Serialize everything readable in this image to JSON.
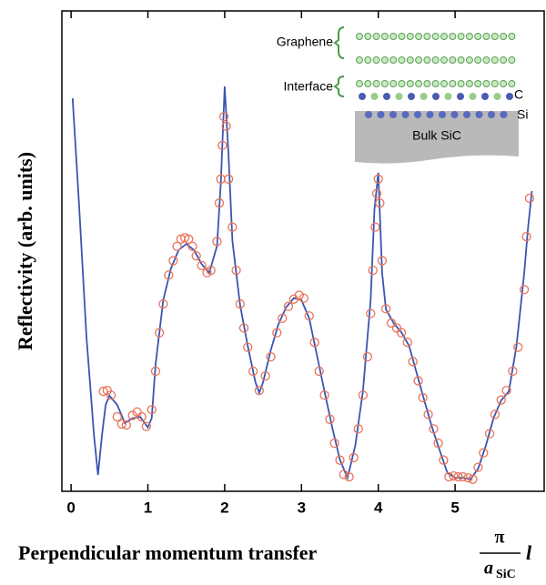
{
  "chart_data": {
    "type": "line",
    "y_label": "Reflectivity (arb. units)",
    "x_label": "Perpendicular momentum transfer",
    "x_label_formula": {
      "numerator": "π",
      "denominator": "a",
      "subscript": "SiC",
      "variable": "l"
    },
    "xlim": [
      -0.12,
      6.16
    ],
    "ylim": [
      0,
      100
    ],
    "xticks": [
      0,
      1,
      2,
      3,
      4,
      5
    ],
    "series": [
      {
        "mode": "line",
        "color": "#3a55b0",
        "x": [
          0.02,
          0.1,
          0.2,
          0.3,
          0.35,
          0.4,
          0.45,
          0.5,
          0.6,
          0.7,
          0.8,
          0.9,
          1.0,
          1.05,
          1.1,
          1.2,
          1.3,
          1.4,
          1.5,
          1.6,
          1.7,
          1.8,
          1.9,
          1.95,
          2.0,
          2.05,
          2.1,
          2.2,
          2.3,
          2.4,
          2.45,
          2.5,
          2.6,
          2.7,
          2.8,
          2.9,
          3.0,
          3.1,
          3.2,
          3.3,
          3.4,
          3.5,
          3.6,
          3.7,
          3.8,
          3.9,
          3.95,
          4.0,
          4.05,
          4.1,
          4.2,
          4.3,
          4.4,
          4.5,
          4.6,
          4.7,
          4.8,
          4.9,
          5.0,
          5.1,
          5.2,
          5.3,
          5.4,
          5.5,
          5.6,
          5.7,
          5.8,
          5.9,
          5.95,
          6.0
        ],
        "values": [
          81.8,
          60.6,
          32.2,
          11.4,
          3.4,
          11.4,
          18,
          19.9,
          18,
          14.2,
          15.2,
          15.5,
          13.3,
          15.2,
          26.5,
          39.8,
          46.4,
          50.2,
          51.5,
          50.2,
          47.3,
          45.5,
          51.1,
          64.4,
          84.3,
          70.1,
          52.1,
          38.8,
          30.3,
          22.7,
          20.5,
          22.7,
          29.4,
          34.8,
          38.3,
          40.2,
          39.8,
          36,
          28.4,
          20.8,
          13.3,
          6.6,
          2.8,
          9.5,
          20.8,
          39.8,
          58.7,
          66.3,
          45.5,
          37.9,
          35,
          33.1,
          30.3,
          24.6,
          18.9,
          13.3,
          8.5,
          3.8,
          2.8,
          2.8,
          2.5,
          4.7,
          9.5,
          15.2,
          18.9,
          20.8,
          30.3,
          45.5,
          54.9,
          62.5
        ]
      },
      {
        "mode": "markers",
        "color": "#e8735a",
        "x": [
          0.42,
          0.47,
          0.52,
          0.6,
          0.66,
          0.72,
          0.8,
          0.86,
          0.92,
          0.98,
          1.05,
          1.1,
          1.15,
          1.2,
          1.27,
          1.33,
          1.38,
          1.43,
          1.48,
          1.53,
          1.58,
          1.63,
          1.7,
          1.77,
          1.82,
          1.9,
          1.93,
          1.95,
          1.97,
          1.99,
          2.02,
          2.05,
          2.1,
          2.15,
          2.2,
          2.25,
          2.3,
          2.37,
          2.45,
          2.53,
          2.6,
          2.68,
          2.75,
          2.83,
          2.9,
          2.97,
          3.03,
          3.1,
          3.17,
          3.23,
          3.3,
          3.37,
          3.43,
          3.5,
          3.55,
          3.62,
          3.68,
          3.74,
          3.8,
          3.86,
          3.9,
          3.93,
          3.96,
          3.98,
          4.0,
          4.02,
          4.05,
          4.1,
          4.17,
          4.24,
          4.3,
          4.38,
          4.45,
          4.52,
          4.58,
          4.65,
          4.72,
          4.78,
          4.85,
          4.92,
          4.98,
          5.04,
          5.1,
          5.17,
          5.23,
          5.3,
          5.37,
          5.45,
          5.52,
          5.6,
          5.67,
          5.75,
          5.82,
          5.9,
          5.93,
          5.97
        ],
        "values": [
          20.8,
          21,
          20,
          15.5,
          14,
          13.8,
          15.8,
          16.5,
          15.5,
          13.5,
          17,
          25,
          33,
          39,
          45,
          48,
          51,
          52.5,
          52.8,
          52.5,
          51,
          49,
          47,
          45.5,
          46,
          52,
          60,
          65,
          72,
          78,
          76,
          65,
          55,
          46,
          39,
          34,
          30,
          25,
          21,
          24,
          28,
          33,
          36,
          38.5,
          40,
          40.8,
          40.2,
          36.5,
          31,
          25,
          20,
          15,
          10,
          6.5,
          3.5,
          3,
          7,
          13,
          20,
          28,
          37,
          46,
          55,
          62,
          65,
          60,
          48,
          38,
          35,
          34,
          33,
          31,
          27,
          23,
          19.5,
          16,
          13,
          10,
          6.5,
          3,
          3.2,
          3,
          3,
          2.8,
          2.5,
          5,
          8,
          12,
          16,
          19,
          21,
          25,
          30,
          42,
          53,
          61
        ]
      }
    ],
    "inset": {
      "labels": {
        "graphene": "Graphene",
        "interface": "Interface",
        "carbon": "C",
        "silicon": "Si",
        "bulk": "Bulk SiC"
      }
    }
  }
}
